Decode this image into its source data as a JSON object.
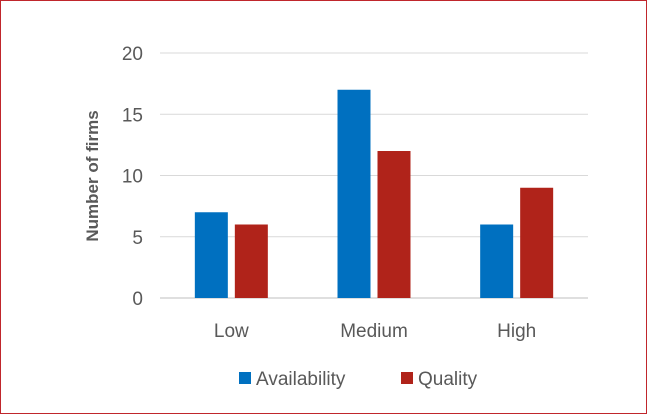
{
  "chart_data": {
    "type": "bar",
    "categories": [
      "Low",
      "Medium",
      "High"
    ],
    "series": [
      {
        "name": "Availability",
        "values": [
          7,
          17,
          6
        ],
        "color": "#0070c0"
      },
      {
        "name": "Quality",
        "values": [
          6,
          12,
          9
        ],
        "color": "#b0231a"
      }
    ],
    "ylabel": "Number of firms",
    "ylim": [
      0,
      20
    ],
    "yticks": [
      "0",
      "5",
      "10",
      "15",
      "20"
    ],
    "grid": true,
    "legend": "bottom",
    "frame_color": "#c0262c"
  }
}
